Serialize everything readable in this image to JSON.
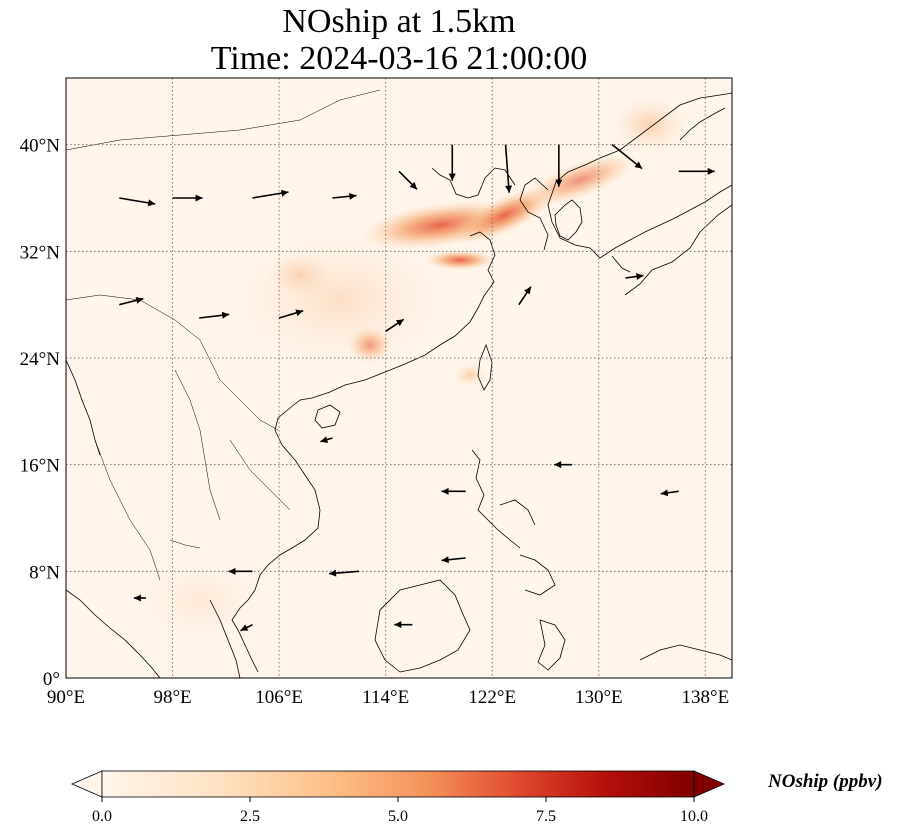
{
  "title": {
    "line1": "NOship at 1.5km",
    "line2": "Time: 2024-03-16 21:00:00"
  },
  "map": {
    "extent": {
      "lon": [
        90,
        140
      ],
      "lat": [
        0,
        45
      ]
    },
    "lon_ticks": [
      {
        "value": 90,
        "label": "90°E"
      },
      {
        "value": 98,
        "label": "98°E"
      },
      {
        "value": 106,
        "label": "106°E"
      },
      {
        "value": 114,
        "label": "114°E"
      },
      {
        "value": 122,
        "label": "122°E"
      },
      {
        "value": 130,
        "label": "130°E"
      },
      {
        "value": 138,
        "label": "138°E"
      }
    ],
    "lat_ticks": [
      {
        "value": 0,
        "label": "0°"
      },
      {
        "value": 8,
        "label": "8°N"
      },
      {
        "value": 16,
        "label": "16°N"
      },
      {
        "value": 24,
        "label": "24°N"
      },
      {
        "value": 32,
        "label": "32°N"
      },
      {
        "value": 40,
        "label": "40°N"
      }
    ],
    "gridlines": true,
    "background_color": "#fff5eb",
    "plume_color_low": "#fdd0a2",
    "plume_color_mid": "#f4a06a",
    "plume_color_high": "#e8553a"
  },
  "colorbar": {
    "label": "NOship (ppbv)",
    "range": [
      0.0,
      10.0
    ],
    "ticks": [
      "0.0",
      "2.5",
      "5.0",
      "7.5",
      "10.0"
    ],
    "colormap": "OrRd-like",
    "colors": [
      "#fff5eb",
      "#fdd0a2",
      "#fdae6b",
      "#f16913",
      "#b30000",
      "#7f0000"
    ],
    "extend": "both"
  },
  "chart_data": {
    "type": "heatmap",
    "title": "NOship at 1.5km\nTime: 2024-03-16 21:00:00",
    "variable": "NOship (ppbv)",
    "overlay": "wind vectors",
    "plume_regions": [
      {
        "lon": 118.5,
        "lat": 34.5,
        "value": 5.5
      },
      {
        "lon": 124,
        "lat": 35.5,
        "value": 4.0
      },
      {
        "lon": 120,
        "lat": 31.5,
        "value": 5.0
      },
      {
        "lon": 131,
        "lat": 38.5,
        "value": 3.5
      },
      {
        "lon": 135.5,
        "lat": 42,
        "value": 2.5
      },
      {
        "lon": 112.5,
        "lat": 25,
        "value": 3.0
      },
      {
        "lon": 111,
        "lat": 29.5,
        "value": 2.0
      },
      {
        "lon": 119.5,
        "lat": 23,
        "value": 2.0
      }
    ],
    "wind_vectors": [
      {
        "lon": 94,
        "lat": 36,
        "u": 3,
        "v": -0.5
      },
      {
        "lon": 98,
        "lat": 36,
        "u": 2.5,
        "v": 0
      },
      {
        "lon": 104,
        "lat": 36,
        "u": 3,
        "v": 0.5
      },
      {
        "lon": 110,
        "lat": 36,
        "u": 2,
        "v": 0.2
      },
      {
        "lon": 115,
        "lat": 38,
        "u": 1.5,
        "v": -1.5
      },
      {
        "lon": 119,
        "lat": 40,
        "u": 0,
        "v": -3
      },
      {
        "lon": 123,
        "lat": 40,
        "u": 0.3,
        "v": -4
      },
      {
        "lon": 127,
        "lat": 40,
        "u": 0,
        "v": -3.5
      },
      {
        "lon": 131,
        "lat": 40,
        "u": 2.5,
        "v": -2
      },
      {
        "lon": 136,
        "lat": 38,
        "u": 3,
        "v": 0
      },
      {
        "lon": 94,
        "lat": 28,
        "u": 2,
        "v": 0.5
      },
      {
        "lon": 100,
        "lat": 27,
        "u": 2.5,
        "v": 0.3
      },
      {
        "lon": 106,
        "lat": 27,
        "u": 2,
        "v": 0.6
      },
      {
        "lon": 114,
        "lat": 26,
        "u": 1.5,
        "v": 1
      },
      {
        "lon": 124,
        "lat": 28,
        "u": 1,
        "v": 1.5
      },
      {
        "lon": 132,
        "lat": 30,
        "u": 1.5,
        "v": 0.2
      },
      {
        "lon": 110,
        "lat": 18,
        "u": -1,
        "v": -0.3
      },
      {
        "lon": 120,
        "lat": 14,
        "u": -2,
        "v": 0
      },
      {
        "lon": 128,
        "lat": 16,
        "u": -1.5,
        "v": 0
      },
      {
        "lon": 136,
        "lat": 14,
        "u": -1.5,
        "v": -0.2
      },
      {
        "lon": 104,
        "lat": 8,
        "u": -2,
        "v": 0
      },
      {
        "lon": 112,
        "lat": 8,
        "u": -2.5,
        "v": -0.2
      },
      {
        "lon": 120,
        "lat": 9,
        "u": -2,
        "v": -0.2
      },
      {
        "lon": 96,
        "lat": 6,
        "u": -1,
        "v": 0
      },
      {
        "lon": 104,
        "lat": 4,
        "u": -1,
        "v": -0.5
      },
      {
        "lon": 116,
        "lat": 4,
        "u": -1.5,
        "v": 0
      }
    ]
  }
}
